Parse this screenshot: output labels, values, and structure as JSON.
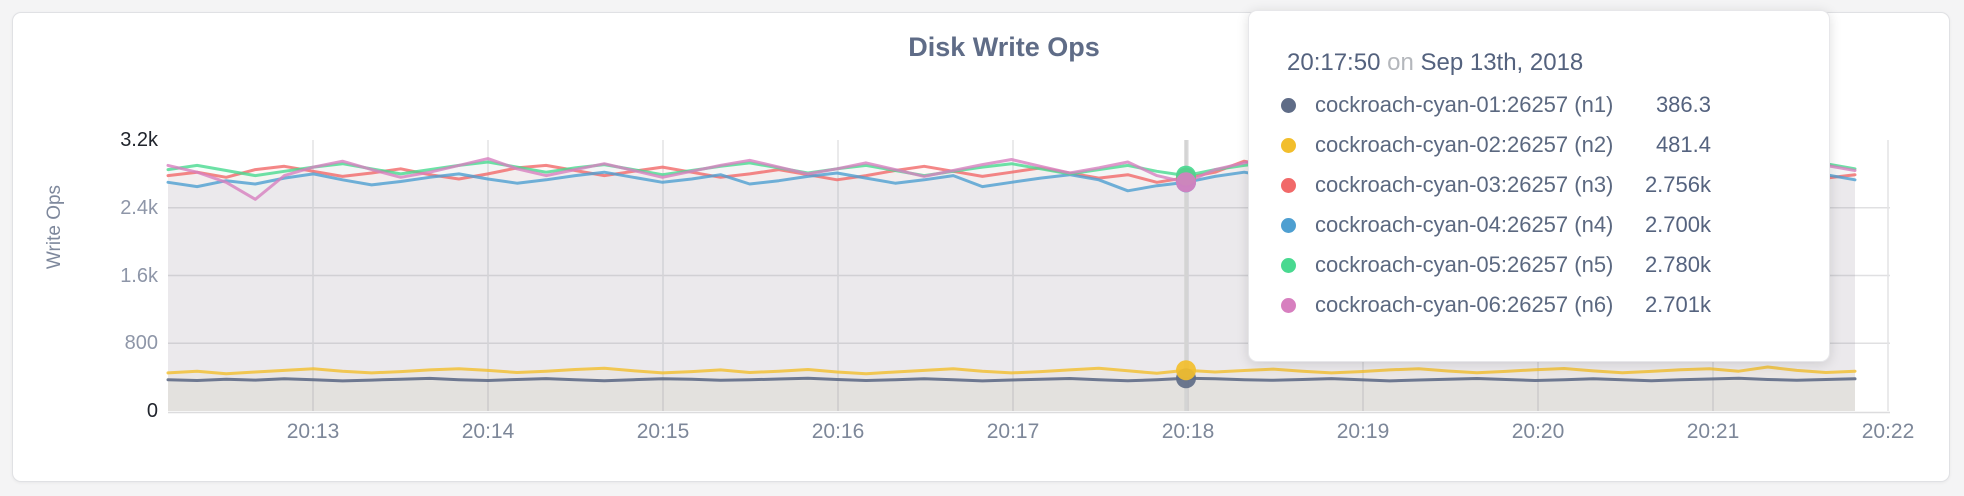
{
  "window": {
    "background": "#f4f4f5",
    "card_background": "#ffffff",
    "card_border": "#e0e1e4"
  },
  "chart_data": {
    "type": "line",
    "title": "Disk Write Ops",
    "xlabel": "",
    "ylabel": "Write Ops",
    "ylim": [
      0,
      3200
    ],
    "grid": true,
    "legend_position": "tooltip-overlay",
    "yticks": [
      {
        "label": "3.2k",
        "value": 3200,
        "strong": true
      },
      {
        "label": "2.4k",
        "value": 2400,
        "strong": false
      },
      {
        "label": "1.6k",
        "value": 1600,
        "strong": false
      },
      {
        "label": "800",
        "value": 800,
        "strong": false
      },
      {
        "label": "0",
        "value": 0,
        "strong": true
      }
    ],
    "xticks": [
      "20:13",
      "20:14",
      "20:15",
      "20:16",
      "20:17",
      "20:18",
      "20:19",
      "20:20",
      "20:21",
      "20:22"
    ],
    "sample_interval_seconds": 10,
    "series": [
      {
        "name": "cockroach-cyan-01:26257 (n1)",
        "color": "#5F6C87",
        "values": [
          370,
          360,
          375,
          365,
          380,
          370,
          355,
          365,
          375,
          385,
          370,
          360,
          372,
          382,
          368,
          358,
          370,
          380,
          374,
          362,
          368,
          378,
          386,
          372,
          360,
          370,
          380,
          368,
          356,
          366,
          376,
          384,
          370,
          358,
          368,
          386,
          380,
          370,
          362,
          372,
          382,
          368,
          356,
          366,
          376,
          384,
          372,
          360,
          370,
          380,
          368,
          358,
          368,
          378,
          386,
          372,
          362,
          372,
          380
        ]
      },
      {
        "name": "cockroach-cyan-02:26257 (n2)",
        "color": "#F2BE2C",
        "values": [
          450,
          470,
          440,
          460,
          480,
          500,
          470,
          450,
          465,
          485,
          500,
          480,
          455,
          470,
          490,
          505,
          475,
          450,
          465,
          485,
          455,
          470,
          490,
          460,
          440,
          460,
          480,
          500,
          470,
          450,
          465,
          485,
          505,
          475,
          445,
          481,
          460,
          478,
          495,
          470,
          450,
          465,
          485,
          500,
          472,
          452,
          468,
          488,
          502,
          474,
          452,
          468,
          486,
          500,
          470,
          520,
          480,
          455,
          470
        ]
      },
      {
        "name": "cockroach-cyan-03:26257 (n3)",
        "color": "#F16969",
        "values": [
          2780,
          2820,
          2760,
          2850,
          2890,
          2830,
          2770,
          2810,
          2860,
          2790,
          2740,
          2800,
          2870,
          2900,
          2840,
          2780,
          2830,
          2880,
          2820,
          2760,
          2800,
          2850,
          2790,
          2730,
          2780,
          2840,
          2890,
          2830,
          2770,
          2820,
          2870,
          2810,
          2750,
          2790,
          2700,
          2756,
          2820,
          2950,
          2880,
          2800,
          2760,
          2810,
          2860,
          2790,
          2750,
          2800,
          2850,
          2780,
          2740,
          2790,
          2840,
          2880,
          2820,
          2770,
          2810,
          2860,
          2800,
          2750,
          2790
        ]
      },
      {
        "name": "cockroach-cyan-04:26257 (n4)",
        "color": "#4E9FD1",
        "values": [
          2700,
          2650,
          2720,
          2680,
          2750,
          2800,
          2730,
          2670,
          2710,
          2760,
          2800,
          2740,
          2690,
          2730,
          2780,
          2820,
          2760,
          2700,
          2740,
          2790,
          2680,
          2720,
          2770,
          2810,
          2750,
          2690,
          2730,
          2780,
          2650,
          2700,
          2750,
          2790,
          2730,
          2600,
          2660,
          2700,
          2770,
          2820,
          2760,
          2700,
          2650,
          2700,
          2750,
          2800,
          2740,
          2680,
          2720,
          2770,
          2810,
          2750,
          2690,
          2730,
          2780,
          2820,
          2760,
          2700,
          2740,
          2790,
          2730
        ]
      },
      {
        "name": "cockroach-cyan-05:26257 (n5)",
        "color": "#49D990",
        "values": [
          2850,
          2900,
          2840,
          2780,
          2830,
          2880,
          2920,
          2860,
          2800,
          2850,
          2900,
          2940,
          2880,
          2820,
          2870,
          2910,
          2850,
          2790,
          2840,
          2890,
          2930,
          2870,
          2810,
          2860,
          2900,
          2840,
          2780,
          2830,
          2880,
          2920,
          2860,
          2800,
          2850,
          2900,
          2830,
          2780,
          2850,
          2900,
          2940,
          2880,
          2820,
          2870,
          2910,
          2850,
          2790,
          2840,
          2890,
          2930,
          2870,
          2810,
          2860,
          2900,
          2840,
          2950,
          2890,
          2830,
          2880,
          2920,
          2860
        ]
      },
      {
        "name": "cockroach-cyan-06:26257 (n6)",
        "color": "#D77FBF",
        "values": [
          2900,
          2820,
          2700,
          2500,
          2780,
          2880,
          2950,
          2850,
          2760,
          2820,
          2900,
          2980,
          2860,
          2780,
          2850,
          2920,
          2840,
          2760,
          2830,
          2900,
          2960,
          2880,
          2800,
          2860,
          2930,
          2850,
          2770,
          2840,
          2910,
          2970,
          2890,
          2810,
          2870,
          2940,
          2780,
          2701,
          2850,
          2930,
          3000,
          2900,
          2820,
          2880,
          2950,
          2870,
          2790,
          2850,
          2920,
          2980,
          2900,
          2820,
          2880,
          2940,
          2860,
          2780,
          2850,
          2910,
          2830,
          2900,
          2840
        ]
      }
    ]
  },
  "tooltip": {
    "time": "20:17:50",
    "conjunction": "on",
    "date": "Sep 13th, 2018",
    "hover_index": 35,
    "rows": [
      {
        "name": "cockroach-cyan-01:26257 (n1)",
        "value": "386.3",
        "color": "#5F6C87"
      },
      {
        "name": "cockroach-cyan-02:26257 (n2)",
        "value": "481.4",
        "color": "#F2BE2C"
      },
      {
        "name": "cockroach-cyan-03:26257 (n3)",
        "value": "2.756k",
        "color": "#F16969"
      },
      {
        "name": "cockroach-cyan-04:26257 (n4)",
        "value": "2.700k",
        "color": "#4E9FD1"
      },
      {
        "name": "cockroach-cyan-05:26257 (n5)",
        "value": "2.780k",
        "color": "#49D990"
      },
      {
        "name": "cockroach-cyan-06:26257 (n6)",
        "value": "2.701k",
        "color": "#D77FBF"
      }
    ]
  }
}
